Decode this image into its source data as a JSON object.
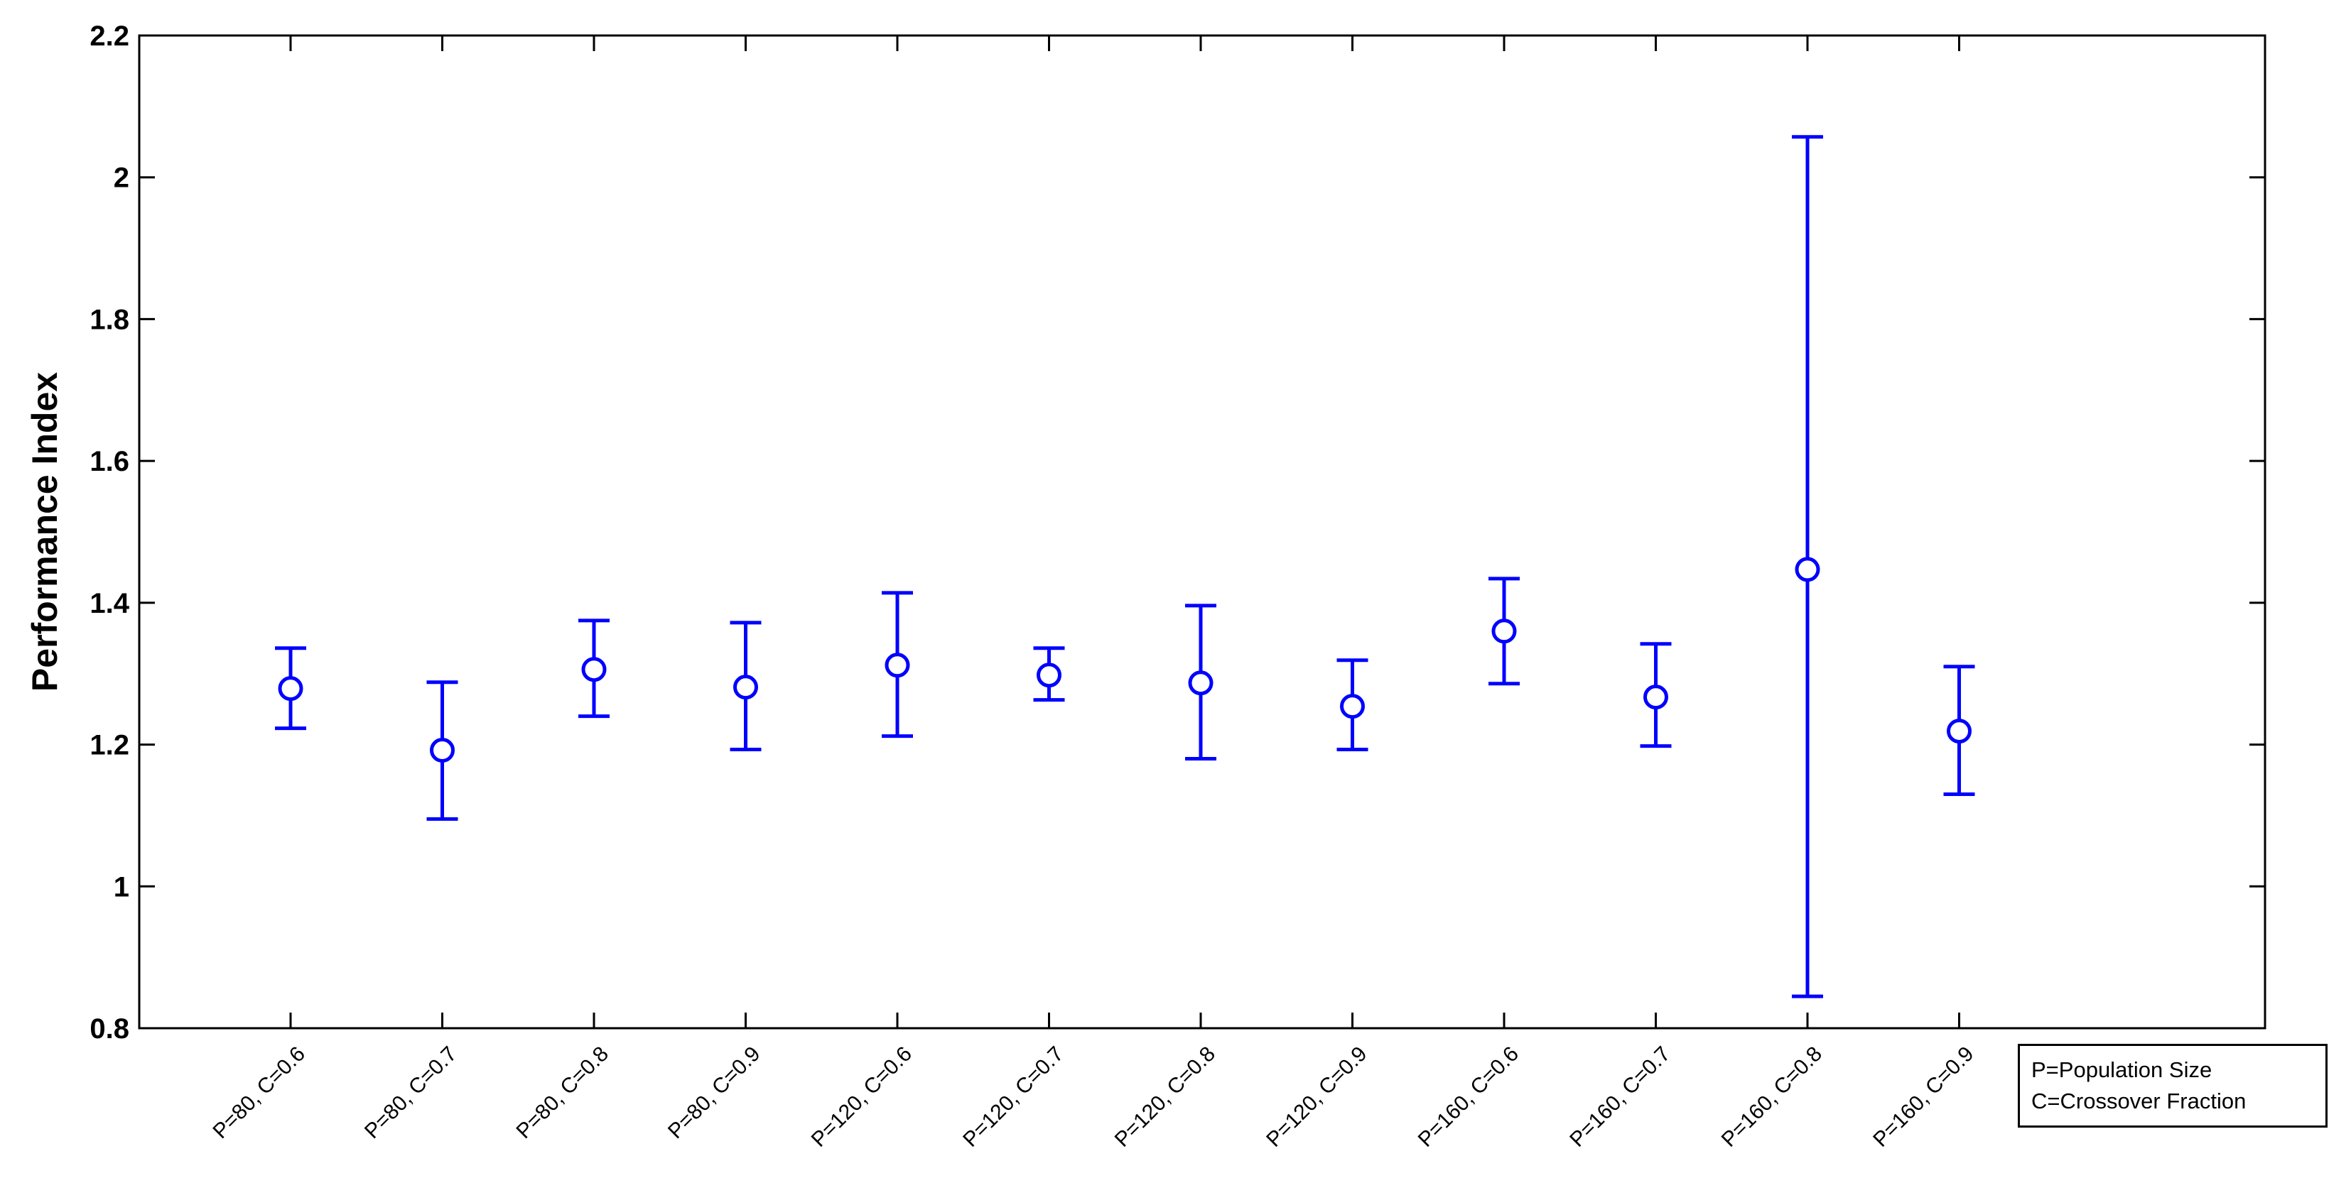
{
  "chart_data": {
    "type": "errorbar",
    "categories": [
      "P=80, C=0.6",
      "P=80, C=0.7",
      "P=80, C=0.8",
      "P=80, C=0.9",
      "P=120, C=0.6",
      "P=120, C=0.7",
      "P=120, C=0.8",
      "P=120, C=0.9",
      "P=160, C=0.6",
      "P=160, C=0.7",
      "P=160, C=0.8",
      "P=160, C=0.9"
    ],
    "values": [
      1.279,
      1.192,
      1.306,
      1.281,
      1.312,
      1.298,
      1.287,
      1.254,
      1.36,
      1.267,
      1.447,
      1.219
    ],
    "lower": [
      1.223,
      1.095,
      1.24,
      1.193,
      1.212,
      1.263,
      1.18,
      1.193,
      1.286,
      1.198,
      0.845,
      1.13
    ],
    "upper": [
      1.336,
      1.288,
      1.375,
      1.372,
      1.414,
      1.336,
      1.396,
      1.319,
      1.434,
      1.342,
      2.057,
      1.31
    ],
    "title": "",
    "xlabel": "",
    "ylabel": "Performance Index",
    "ylim": [
      0.8,
      2.2
    ],
    "yticks": [
      "0.8",
      "1",
      "1.2",
      "1.4",
      "1.6",
      "1.8",
      "2",
      "2.2"
    ],
    "grid": false,
    "legend_position": "bottom-right-outside",
    "legend_lines": [
      "P=Population Size",
      "C=Crossover Fraction"
    ],
    "color": "#0000ff"
  }
}
